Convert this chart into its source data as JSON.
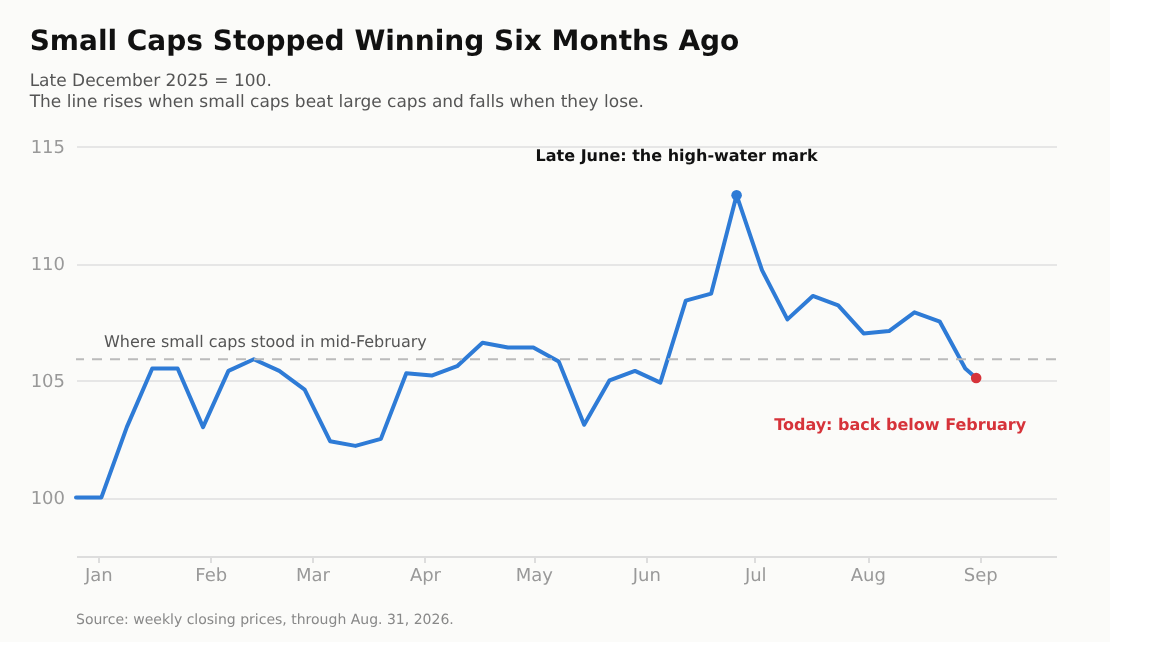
{
  "chart_data": {
    "type": "line",
    "title": "Small Caps Stopped Winning Six Months Ago",
    "subtitle": [
      "Late December 2025 = 100.",
      "The line rises when small caps beat large caps and falls when they lose."
    ],
    "x": [
      "2025-12-26",
      "2026-01-02",
      "2026-01-09",
      "2026-01-16",
      "2026-01-23",
      "2026-01-30",
      "2026-02-06",
      "2026-02-13",
      "2026-02-20",
      "2026-02-27",
      "2026-03-06",
      "2026-03-13",
      "2026-03-20",
      "2026-03-27",
      "2026-04-03",
      "2026-04-10",
      "2026-04-17",
      "2026-04-24",
      "2026-05-01",
      "2026-05-08",
      "2026-05-15",
      "2026-05-22",
      "2026-05-29",
      "2026-06-05",
      "2026-06-12",
      "2026-06-19",
      "2026-06-26",
      "2026-07-03",
      "2026-07-10",
      "2026-07-17",
      "2026-07-24",
      "2026-07-31",
      "2026-08-07",
      "2026-08-14",
      "2026-08-21",
      "2026-08-28",
      "2026-08-31"
    ],
    "series": [
      {
        "color": "#2e7bd6",
        "values": [
          100.0,
          100.0,
          103.0,
          105.5,
          105.5,
          103.0,
          105.4,
          105.9,
          105.4,
          104.6,
          102.4,
          102.2,
          102.5,
          105.3,
          105.2,
          105.6,
          106.6,
          106.4,
          106.4,
          105.8,
          103.1,
          105.0,
          105.4,
          104.9,
          108.4,
          108.7,
          112.9,
          109.7,
          107.6,
          108.6,
          108.2,
          107.0,
          107.1,
          107.9,
          107.5,
          105.5,
          105.1
        ]
      },
      {
        "type": "scatter",
        "marker": "circle",
        "x": [
          "2026-06-26",
          "2026-08-31"
        ],
        "values": [
          112.9,
          105.1
        ],
        "colors": [
          "#2e7bd6",
          "#d6333a"
        ]
      }
    ],
    "xlim": [
      "2025-12-26",
      "2026-09-22"
    ],
    "xticks": [
      {
        "value": "2026-01-01",
        "label": "Jan"
      },
      {
        "value": "2026-02-01",
        "label": "Feb"
      },
      {
        "value": "2026-03-01",
        "label": "Mar"
      },
      {
        "value": "2026-04-01",
        "label": "Apr"
      },
      {
        "value": "2026-05-01",
        "label": "May"
      },
      {
        "value": "2026-06-01",
        "label": "Jun"
      },
      {
        "value": "2026-07-01",
        "label": "Jul"
      },
      {
        "value": "2026-08-01",
        "label": "Aug"
      },
      {
        "value": "2026-09-01",
        "label": "Sep"
      }
    ],
    "ylim": [
      97.5,
      115
    ],
    "yticks": [
      100,
      105,
      110,
      115
    ],
    "grid": "y",
    "marker": "none",
    "line_style": "solid",
    "ref_lines": [
      {
        "axis": "y",
        "value": 105.9,
        "label": "Where small caps stood in mid-February",
        "color": "#bbbbbb",
        "line_style": "dashed"
      }
    ],
    "annotations": [
      {
        "text": "Late June: the high-water mark",
        "x": "2026-06-26",
        "y": 112.9
      },
      {
        "text": "Today: back below February",
        "x": "2026-08-31",
        "y": 105.1
      },
      "Source: weekly closing prices, through Aug. 31, 2026."
    ]
  }
}
